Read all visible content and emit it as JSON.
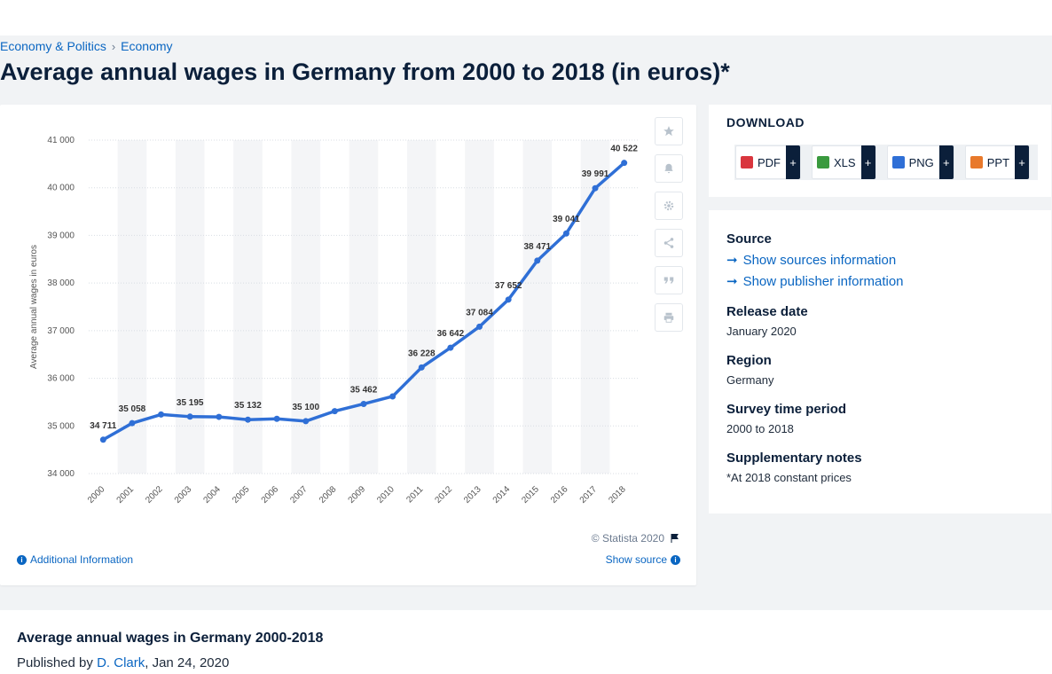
{
  "breadcrumb": [
    "Economy & Politics",
    "Economy"
  ],
  "breadcrumb_sep": "›",
  "page_title": "Average annual wages in Germany from 2000 to 2018 (in euros)*",
  "chart_data": {
    "type": "line",
    "title": "",
    "xlabel": "",
    "ylabel": "Average annual wages in euros",
    "x": [
      "2000",
      "2001",
      "2002",
      "2003",
      "2004",
      "2005",
      "2006",
      "2007",
      "2008",
      "2009",
      "2010",
      "2011",
      "2012",
      "2013",
      "2014",
      "2015",
      "2016",
      "2017",
      "2018"
    ],
    "values": [
      34711,
      35058,
      35240,
      35195,
      35190,
      35132,
      35150,
      35100,
      35310,
      35462,
      35620,
      36228,
      36642,
      37084,
      37652,
      38471,
      39041,
      39991,
      40522
    ],
    "data_labels": {
      "0": "34 711",
      "1": "35 058",
      "3": "35 195",
      "5": "35 132",
      "7": "35 100",
      "9": "35 462",
      "11": "36 228",
      "12": "36 642",
      "13": "37 084",
      "14": "37 652",
      "15": "38 471",
      "16": "39 041",
      "17": "39 991",
      "18": "40 522"
    },
    "yticks": [
      34000,
      35000,
      36000,
      37000,
      38000,
      39000,
      40000,
      41000
    ],
    "ytick_labels": [
      "34 000",
      "35 000",
      "36 000",
      "37 000",
      "38 000",
      "39 000",
      "40 000",
      "41 000"
    ],
    "ylim": [
      34000,
      41000
    ],
    "grid": true,
    "line_color": "#2f6fd6"
  },
  "chart_footer": {
    "copyright": "© Statista 2020",
    "additional_info": "Additional Information",
    "show_source": "Show source"
  },
  "toolbar_icons": [
    "star-icon",
    "bell-icon",
    "gear-icon",
    "share-icon",
    "quote-icon",
    "print-icon"
  ],
  "download": {
    "title": "DOWNLOAD",
    "buttons": [
      {
        "label": "PDF",
        "color": "#d9363e"
      },
      {
        "label": "XLS",
        "color": "#3a9a3e"
      },
      {
        "label": "PNG",
        "color": "#2f6fd6"
      },
      {
        "label": "PPT",
        "color": "#e8792b"
      }
    ],
    "plus": "+"
  },
  "meta": {
    "source_h": "Source",
    "show_sources": "Show sources information",
    "show_publisher": "Show publisher information",
    "release_h": "Release date",
    "release_v": "January 2020",
    "region_h": "Region",
    "region_v": "Germany",
    "survey_h": "Survey time period",
    "survey_v": "2000 to 2018",
    "notes_h": "Supplementary notes",
    "notes_v": "*At 2018 constant prices"
  },
  "bottom": {
    "title": "Average annual wages in Germany 2000-2018",
    "published_by": "Published by",
    "author": "D. Clark",
    "date": ", Jan 24, 2020"
  }
}
